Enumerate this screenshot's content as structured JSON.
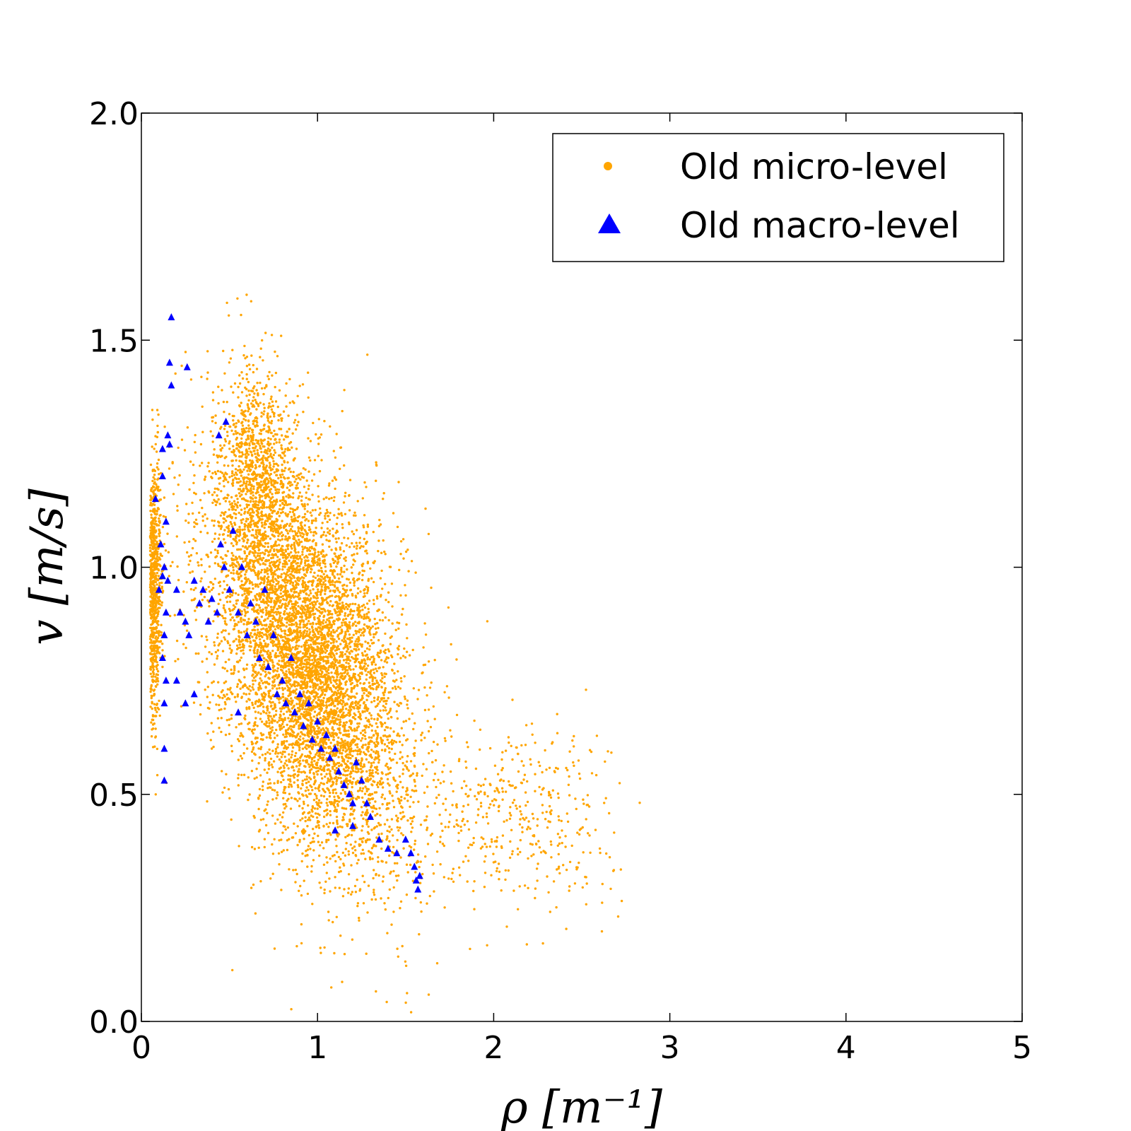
{
  "chart_data": {
    "type": "scatter",
    "xlabel": "ρ [m⁻¹]",
    "ylabel": "v [m/s]",
    "xlim": [
      0,
      5
    ],
    "ylim": [
      0,
      2.0
    ],
    "x_ticks": [
      "0",
      "1",
      "2",
      "3",
      "4",
      "5"
    ],
    "y_ticks": [
      "0.0",
      "0.5",
      "1.0",
      "1.5",
      "2.0"
    ],
    "grid": false,
    "legend_position": "top-right",
    "series": [
      {
        "name": "Old micro-level",
        "marker": "dot",
        "color": "#FFA500",
        "point_count_approx": 60000,
        "summary": {
          "clusters": [
            {
              "x_mean": 0.95,
              "y_mean": 0.8,
              "x_sd": 0.28,
              "y_sd": 0.2,
              "weight": 0.75
            },
            {
              "x_mean": 0.07,
              "y_mean": 0.95,
              "x_sd": 0.02,
              "y_sd": 0.14,
              "weight": 0.1
            },
            {
              "x_mean": 0.65,
              "y_mean": 1.2,
              "x_sd": 0.1,
              "y_sd": 0.12,
              "weight": 0.1
            },
            {
              "x_mean": 2.1,
              "y_mean": 0.45,
              "x_sd": 0.3,
              "y_sd": 0.1,
              "weight": 0.05
            }
          ],
          "x_range": [
            0.05,
            2.9
          ],
          "y_range": [
            0.0,
            1.6
          ]
        }
      },
      {
        "name": "Old macro-level",
        "marker": "triangle",
        "color": "#0000FF",
        "points": [
          [
            0.17,
            1.55
          ],
          [
            0.16,
            1.45
          ],
          [
            0.17,
            1.4
          ],
          [
            0.26,
            1.44
          ],
          [
            0.44,
            1.29
          ],
          [
            0.48,
            1.32
          ],
          [
            0.15,
            1.29
          ],
          [
            0.12,
            1.26
          ],
          [
            0.16,
            1.27
          ],
          [
            0.08,
            1.15
          ],
          [
            0.12,
            1.2
          ],
          [
            0.14,
            1.1
          ],
          [
            0.11,
            1.05
          ],
          [
            0.13,
            1.0
          ],
          [
            0.12,
            0.98
          ],
          [
            0.15,
            0.97
          ],
          [
            0.1,
            0.95
          ],
          [
            0.14,
            0.9
          ],
          [
            0.13,
            0.85
          ],
          [
            0.12,
            0.8
          ],
          [
            0.14,
            0.75
          ],
          [
            0.13,
            0.7
          ],
          [
            0.13,
            0.6
          ],
          [
            0.13,
            0.53
          ],
          [
            0.2,
            0.95
          ],
          [
            0.22,
            0.9
          ],
          [
            0.25,
            0.88
          ],
          [
            0.27,
            0.85
          ],
          [
            0.3,
            0.97
          ],
          [
            0.33,
            0.92
          ],
          [
            0.35,
            0.95
          ],
          [
            0.38,
            0.88
          ],
          [
            0.4,
            0.93
          ],
          [
            0.43,
            0.9
          ],
          [
            0.45,
            1.05
          ],
          [
            0.47,
            1.0
          ],
          [
            0.5,
            0.95
          ],
          [
            0.52,
            1.08
          ],
          [
            0.55,
            0.9
          ],
          [
            0.57,
            1.0
          ],
          [
            0.6,
            0.85
          ],
          [
            0.62,
            0.92
          ],
          [
            0.65,
            0.88
          ],
          [
            0.67,
            0.8
          ],
          [
            0.7,
            0.95
          ],
          [
            0.72,
            0.78
          ],
          [
            0.75,
            0.85
          ],
          [
            0.77,
            0.72
          ],
          [
            0.8,
            0.75
          ],
          [
            0.82,
            0.7
          ],
          [
            0.85,
            0.8
          ],
          [
            0.87,
            0.68
          ],
          [
            0.9,
            0.72
          ],
          [
            0.92,
            0.65
          ],
          [
            0.95,
            0.7
          ],
          [
            0.97,
            0.62
          ],
          [
            1.0,
            0.66
          ],
          [
            1.02,
            0.6
          ],
          [
            1.05,
            0.63
          ],
          [
            1.07,
            0.58
          ],
          [
            1.1,
            0.6
          ],
          [
            1.12,
            0.55
          ],
          [
            1.15,
            0.52
          ],
          [
            1.18,
            0.5
          ],
          [
            1.2,
            0.48
          ],
          [
            1.22,
            0.57
          ],
          [
            1.25,
            0.53
          ],
          [
            1.28,
            0.48
          ],
          [
            1.3,
            0.45
          ],
          [
            1.35,
            0.4
          ],
          [
            1.4,
            0.38
          ],
          [
            1.45,
            0.37
          ],
          [
            1.5,
            0.4
          ],
          [
            1.53,
            0.37
          ],
          [
            1.55,
            0.34
          ],
          [
            1.56,
            0.31
          ],
          [
            1.57,
            0.29
          ],
          [
            1.58,
            0.32
          ],
          [
            1.1,
            0.42
          ],
          [
            1.2,
            0.43
          ],
          [
            0.55,
            0.68
          ],
          [
            0.3,
            0.72
          ],
          [
            0.25,
            0.7
          ],
          [
            0.2,
            0.75
          ]
        ]
      }
    ]
  }
}
